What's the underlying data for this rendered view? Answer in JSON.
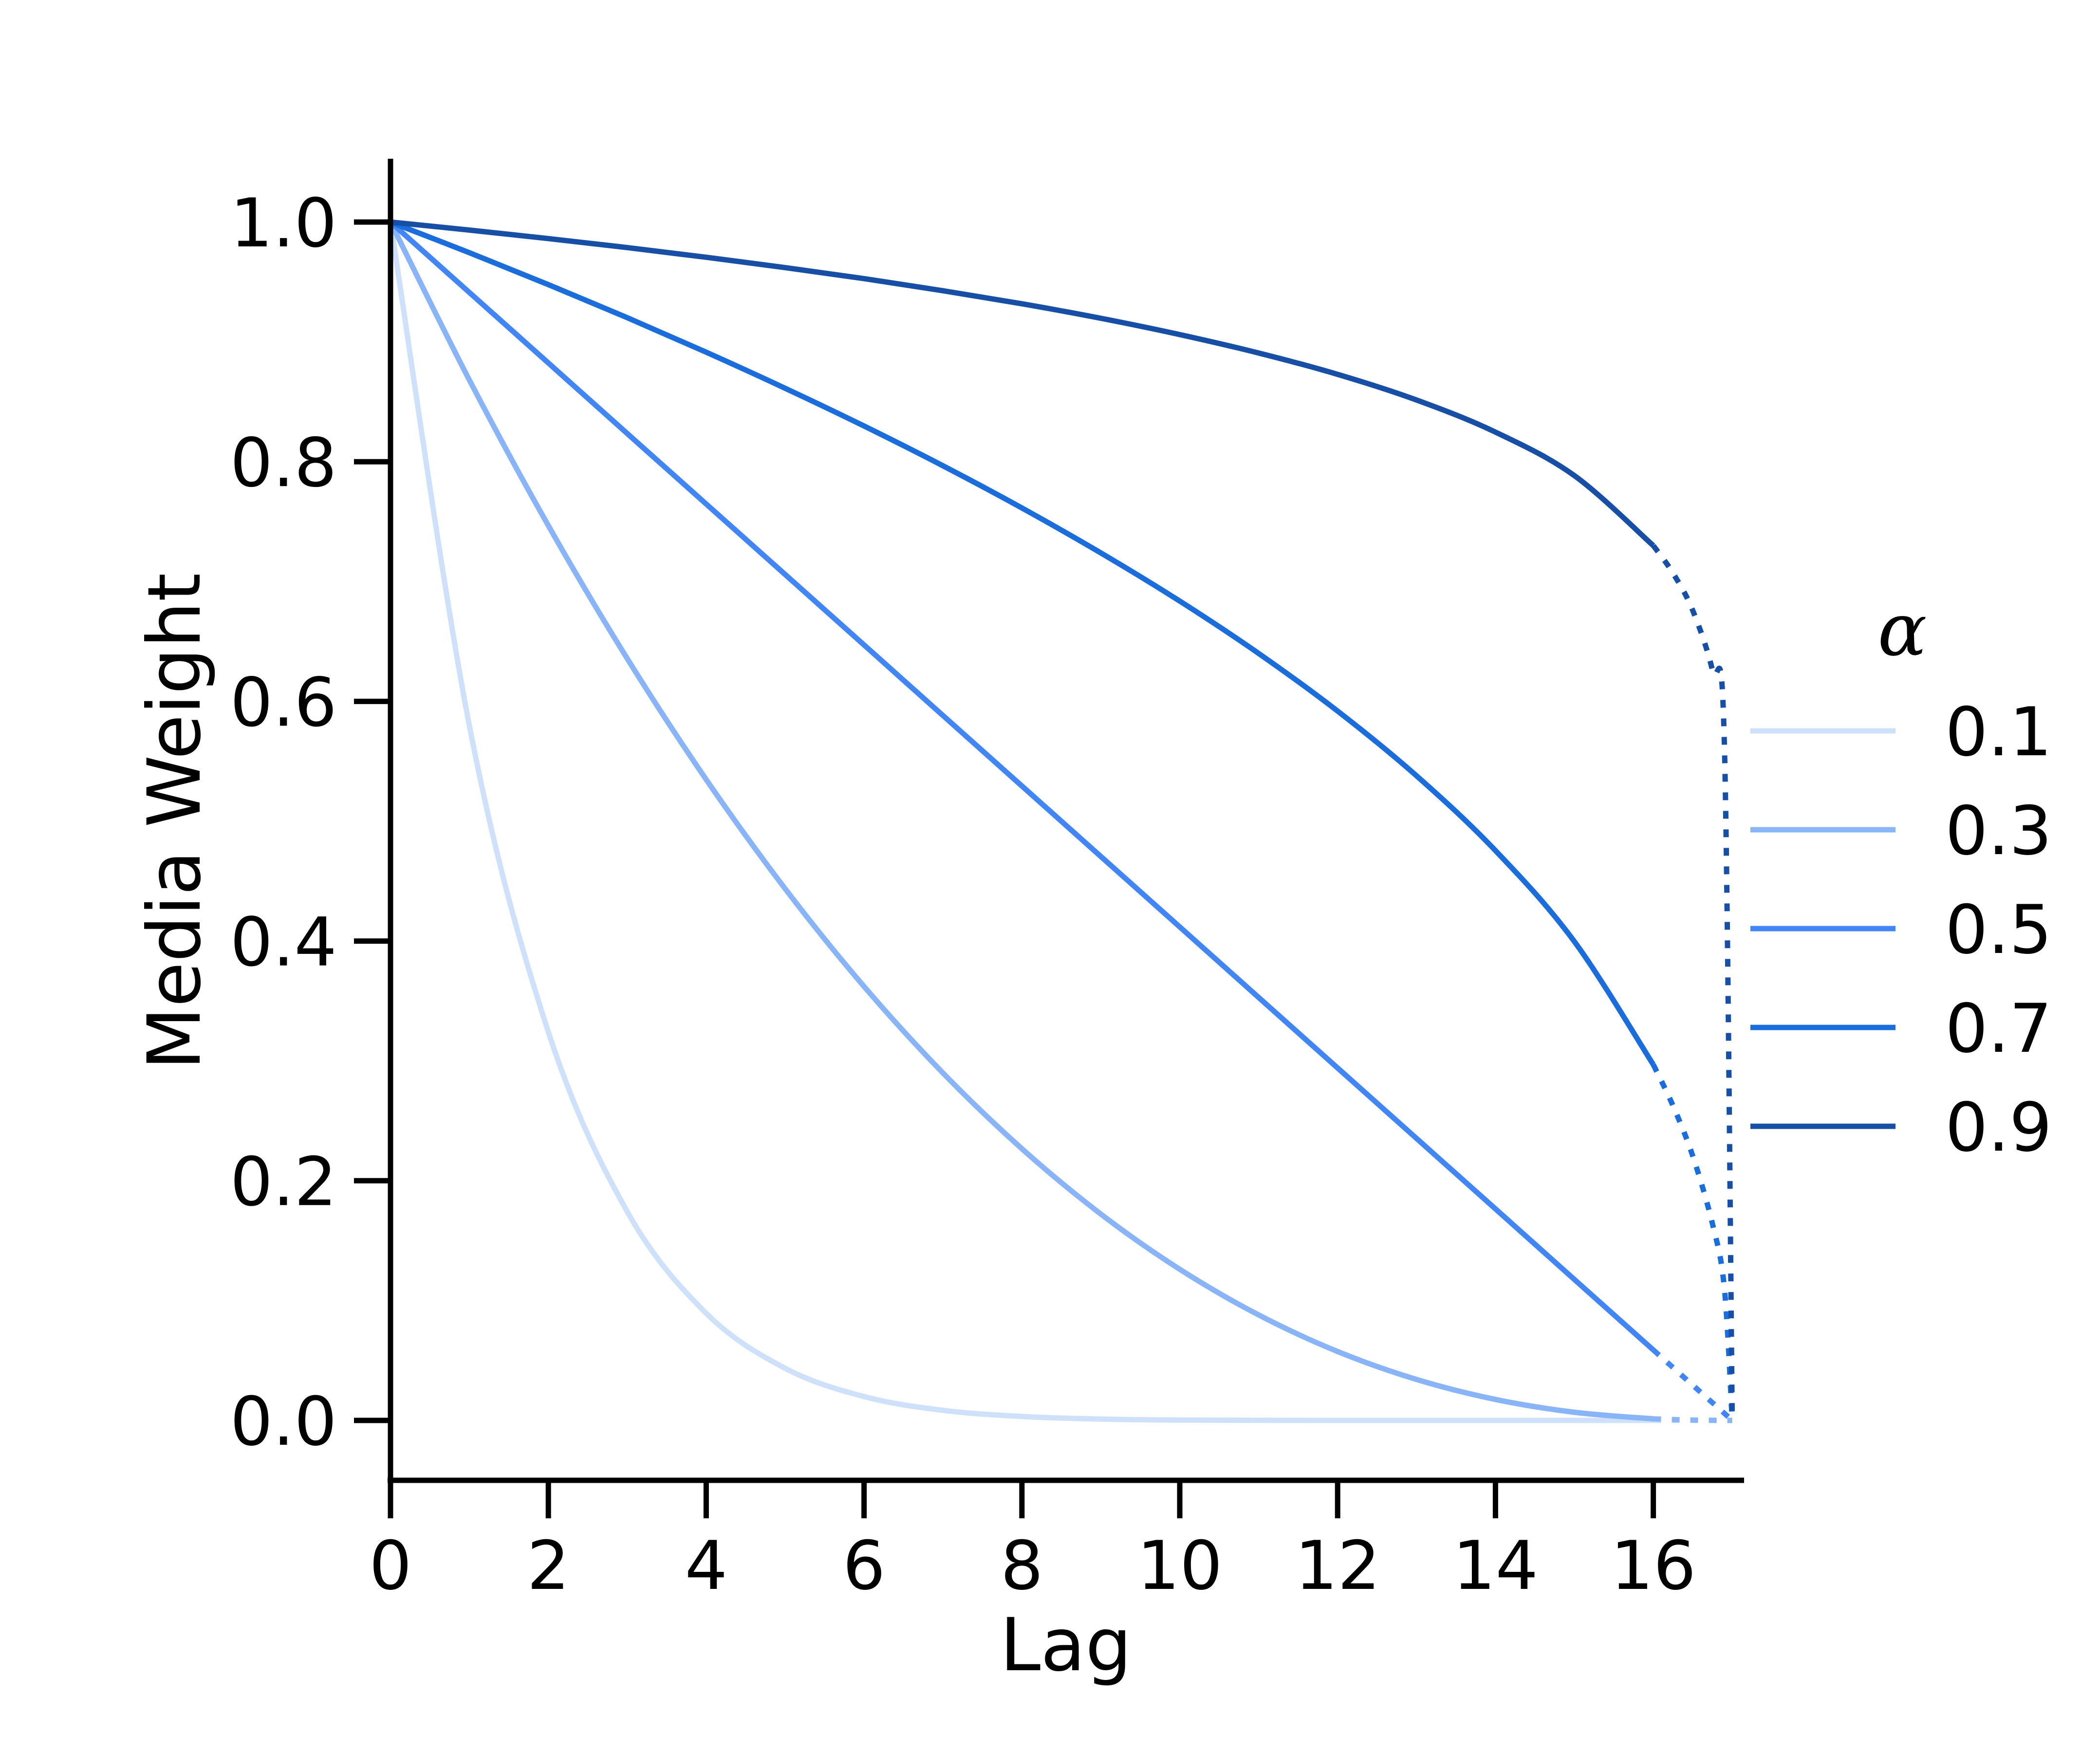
{
  "chart_data": {
    "type": "line",
    "title": "",
    "xlabel": "Lag",
    "ylabel": "Media Weight",
    "xlim": [
      0,
      17.2
    ],
    "ylim": [
      -0.05,
      1.05
    ],
    "xticks": [
      "0",
      "2",
      "4",
      "6",
      "8",
      "10",
      "12",
      "14",
      "16"
    ],
    "yticks": [
      "0.0",
      "0.2",
      "0.4",
      "0.6",
      "0.8",
      "1.0"
    ],
    "grid": false,
    "legend": {
      "title": "α",
      "placement": "center-right"
    },
    "solid_x": [
      0,
      1,
      2,
      3,
      4,
      5,
      6,
      7,
      8,
      9,
      10,
      11,
      12,
      13,
      14,
      15,
      16
    ],
    "dotted_x": [
      16,
      16.25,
      16.5,
      16.75,
      16.9,
      17
    ],
    "series": [
      {
        "name": "0.1",
        "color": "#cfe1fa",
        "solid": [
          1,
          0.5795,
          0.3242,
          0.1742,
          0.0894,
          0.0435,
          0.0199,
          0.0084,
          0.0033,
          0.0011,
          0.0003,
          0.0001,
          0,
          0,
          0,
          0,
          0
        ],
        "dotted": [
          0,
          0,
          0,
          0,
          0,
          0
        ]
      },
      {
        "name": "0.3",
        "color": "#8ab4f8",
        "solid": [
          1,
          0.8681,
          0.7467,
          0.6357,
          0.5348,
          0.4437,
          0.3621,
          0.2899,
          0.2267,
          0.1722,
          0.1261,
          0.088,
          0.0575,
          0.0342,
          0.0175,
          0.0068,
          0.0013
        ],
        "dotted": [
          0.0013,
          0.0007,
          0.0003,
          0.0001,
          0,
          0
        ]
      },
      {
        "name": "0.5",
        "color": "#4285f4",
        "solid": [
          1,
          0.9412,
          0.8824,
          0.8235,
          0.7647,
          0.7059,
          0.6471,
          0.5882,
          0.5294,
          0.4706,
          0.4118,
          0.3529,
          0.2941,
          0.2353,
          0.1765,
          0.1176,
          0.0588
        ],
        "dotted": [
          0.0588,
          0.0441,
          0.0294,
          0.0147,
          0.0059,
          0
        ]
      },
      {
        "name": "0.7",
        "color": "#1a6ddb",
        "solid": [
          1,
          0.9744,
          0.9478,
          0.9202,
          0.8914,
          0.8613,
          0.8298,
          0.7966,
          0.7614,
          0.7239,
          0.6837,
          0.64,
          0.5919,
          0.5379,
          0.4755,
          0.3996,
          0.2969
        ],
        "dotted": [
          0.2969,
          0.2625,
          0.2206,
          0.1639,
          0.1107,
          0
        ]
      },
      {
        "name": "0.9",
        "color": "#174ea6",
        "solid": [
          1,
          0.9933,
          0.9862,
          0.9787,
          0.9706,
          0.962,
          0.9528,
          0.9427,
          0.9318,
          0.9197,
          0.9061,
          0.8907,
          0.8729,
          0.8515,
          0.8247,
          0.7884,
          0.73
        ],
        "dotted": [
          0.73,
          0.707,
          0.6758,
          0.6258,
          0.5651,
          0
        ]
      }
    ]
  }
}
